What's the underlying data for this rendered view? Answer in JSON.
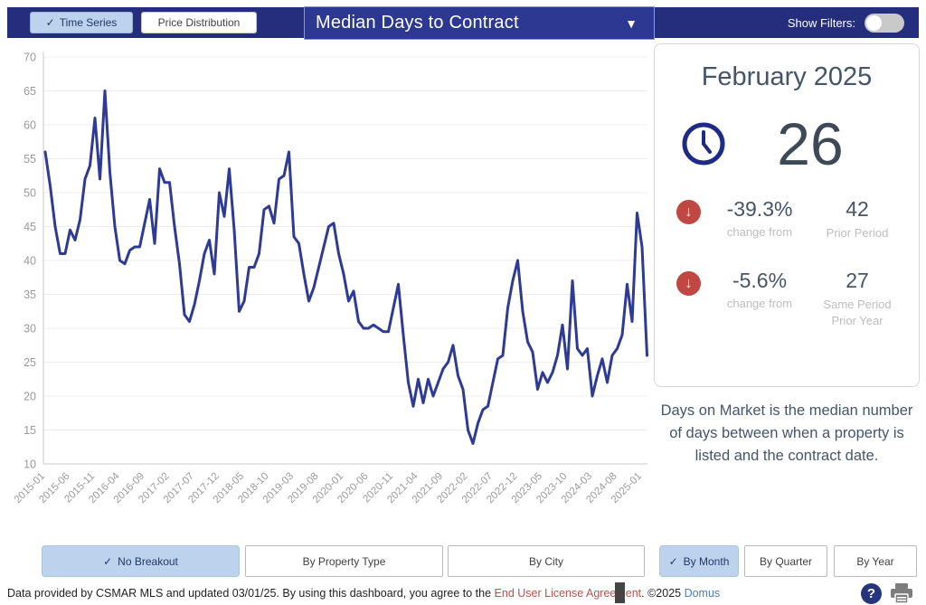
{
  "header": {
    "tabs": [
      {
        "label": "Time Series",
        "checked": true
      },
      {
        "label": "Price Distribution",
        "checked": false
      }
    ],
    "metric_dropdown": {
      "value": "Median Days to Contract"
    },
    "show_filters_label": "Show Filters:",
    "filters_on": false
  },
  "icons": {
    "check": "✓",
    "caret_down": "▼",
    "down_arrow": "↓",
    "question": "?"
  },
  "chart_data": {
    "type": "line",
    "title": "Median Days to Contract",
    "xlabel": "",
    "ylabel": "",
    "ylim": [
      10,
      70
    ],
    "y_ticks": [
      10,
      15,
      20,
      25,
      30,
      35,
      40,
      45,
      50,
      55,
      60,
      65,
      70
    ],
    "grid": true,
    "legend": false,
    "line_color": "#2d3a96",
    "x_tick_step": 5,
    "x": [
      "2015-01",
      "2015-02",
      "2015-03",
      "2015-04",
      "2015-05",
      "2015-06",
      "2015-07",
      "2015-08",
      "2015-09",
      "2015-10",
      "2015-11",
      "2015-12",
      "2016-01",
      "2016-02",
      "2016-03",
      "2016-04",
      "2016-05",
      "2016-06",
      "2016-07",
      "2016-08",
      "2016-09",
      "2016-10",
      "2016-11",
      "2016-12",
      "2017-01",
      "2017-02",
      "2017-03",
      "2017-04",
      "2017-05",
      "2017-06",
      "2017-07",
      "2017-08",
      "2017-09",
      "2017-10",
      "2017-11",
      "2017-12",
      "2018-01",
      "2018-02",
      "2018-03",
      "2018-04",
      "2018-05",
      "2018-06",
      "2018-07",
      "2018-08",
      "2018-09",
      "2018-10",
      "2018-11",
      "2018-12",
      "2019-01",
      "2019-02",
      "2019-03",
      "2019-04",
      "2019-05",
      "2019-06",
      "2019-07",
      "2019-08",
      "2019-09",
      "2019-10",
      "2019-11",
      "2019-12",
      "2020-01",
      "2020-02",
      "2020-03",
      "2020-04",
      "2020-05",
      "2020-06",
      "2020-07",
      "2020-08",
      "2020-09",
      "2020-10",
      "2020-11",
      "2020-12",
      "2021-01",
      "2021-02",
      "2021-03",
      "2021-04",
      "2021-05",
      "2021-06",
      "2021-07",
      "2021-08",
      "2021-09",
      "2021-10",
      "2021-11",
      "2021-12",
      "2022-01",
      "2022-02",
      "2022-03",
      "2022-04",
      "2022-05",
      "2022-06",
      "2022-07",
      "2022-08",
      "2022-09",
      "2022-10",
      "2022-11",
      "2022-12",
      "2023-01",
      "2023-02",
      "2023-03",
      "2023-04",
      "2023-05",
      "2023-06",
      "2023-07",
      "2023-08",
      "2023-09",
      "2023-10",
      "2023-11",
      "2023-12",
      "2024-01",
      "2024-02",
      "2024-03",
      "2024-04",
      "2024-05",
      "2024-06",
      "2024-07",
      "2024-08",
      "2024-09",
      "2024-10",
      "2024-11",
      "2024-12",
      "2025-01",
      "2025-02"
    ],
    "values": [
      56,
      51,
      45,
      41,
      41,
      44.5,
      43,
      46,
      52,
      54,
      61,
      52,
      65,
      53,
      45,
      40,
      39.5,
      41.5,
      42,
      42,
      45.5,
      49,
      42.5,
      53.5,
      51.5,
      51.5,
      45,
      39.5,
      32,
      31,
      33.5,
      37,
      41,
      43,
      38,
      50,
      46.5,
      53.5,
      44.5,
      32.5,
      34,
      39,
      39,
      41,
      47.5,
      48,
      45.5,
      52,
      52.5,
      56,
      43.5,
      42.5,
      38,
      34,
      36,
      39,
      42,
      45,
      45.5,
      41,
      38,
      34,
      35.5,
      31,
      30,
      30,
      30.5,
      30,
      29.5,
      29.5,
      33,
      36.5,
      29,
      22,
      18.5,
      22.5,
      19,
      22.5,
      20,
      22,
      24,
      25,
      27.5,
      23,
      21,
      15,
      13,
      16,
      18,
      18.5,
      22,
      25.5,
      26,
      33,
      37,
      40,
      32.5,
      28,
      26.5,
      21,
      23.5,
      22,
      23.5,
      26,
      30.5,
      24,
      37,
      27,
      26,
      27,
      20,
      23,
      25.5,
      22,
      26,
      27,
      29,
      36.5,
      31,
      47,
      42,
      26
    ]
  },
  "summary_panel": {
    "period_label": "February 2025",
    "current_value": "26",
    "comparisons": [
      {
        "direction": "down",
        "change": "-39.3%",
        "change_label": "change from",
        "value": "42",
        "value_label": "Prior Period"
      },
      {
        "direction": "down",
        "change": "-5.6%",
        "change_label": "change from",
        "value": "27",
        "value_label": "Same Period Prior Year"
      }
    ],
    "description": "Days on Market is the median number of days between when a property is listed and the contract date."
  },
  "breakout_buttons": [
    {
      "label": "No Breakout",
      "checked": true
    },
    {
      "label": "By Property Type",
      "checked": false
    },
    {
      "label": "By City",
      "checked": false
    }
  ],
  "period_buttons": [
    {
      "label": "By Month",
      "checked": true
    },
    {
      "label": "By Quarter",
      "checked": false
    },
    {
      "label": "By Year",
      "checked": false
    }
  ],
  "footer": {
    "text_prefix": "Data provided by CSMAR MLS and updated 03/01/25.  By using this dashboard, you agree to the ",
    "license_link": "End User License Agreement",
    "text_middle": ".  ©2025 ",
    "brand_link": "Domus"
  },
  "colors": {
    "bar_navy": "#252e7d",
    "dropdown_navy": "#2c3892",
    "checked_button_bg": "#bdd2ec",
    "line": "#2d3a96",
    "negative_red": "#c14742",
    "slate_text": "#44546a",
    "muted_label": "#bdbdbd",
    "axis_text": "#9a9a9a",
    "grid": "#ededed"
  }
}
